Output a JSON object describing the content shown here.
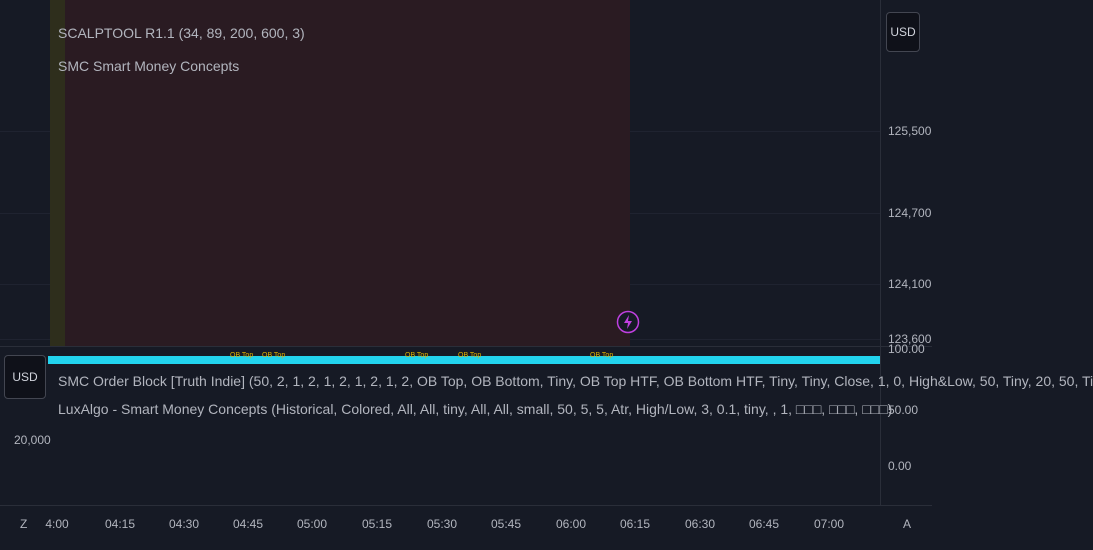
{
  "top_pane": {
    "legend": [
      "SCALPTOOL R1.1 (34, 89, 200, 600, 3)",
      "SMC Smart Money Concepts"
    ],
    "currency_button": "USD",
    "price_labels": [
      "125,500",
      "124,700",
      "124,100",
      "123,600"
    ]
  },
  "ob_labels": [
    "OB Top",
    "OB Top",
    "OB Top",
    "OB Top",
    "OB Top"
  ],
  "bottom_pane": {
    "currency_button": "USD",
    "legend": [
      "SMC Order Block [Truth Indie] (50, 2, 1, 2, 1, 2, 1, 2, 1, 2, OB Top, OB Bottom, Tiny, OB Top HTF, OB Bottom HTF, Tiny, Tiny, Close, 1, 0, High&Low, 50, Tiny, 20, 50, Ti",
      "LuxAlgo - Smart Money Concepts (Historical, Colored, All, All, tiny, All, All, small, 50, 5, 5, Atr, High/Low, 3, 0.1, tiny, , 1, □□□, □□□, □□□)"
    ],
    "left_label": "20,000",
    "scale_labels": [
      "100.00",
      "50.00",
      "0.00"
    ]
  },
  "time_axis": {
    "left_button": "Z",
    "right_button": "A",
    "labels": [
      "4:00",
      "04:15",
      "04:30",
      "04:45",
      "05:00",
      "05:15",
      "05:30",
      "05:45",
      "06:00",
      "06:15",
      "06:30",
      "06:45",
      "07:00"
    ]
  }
}
